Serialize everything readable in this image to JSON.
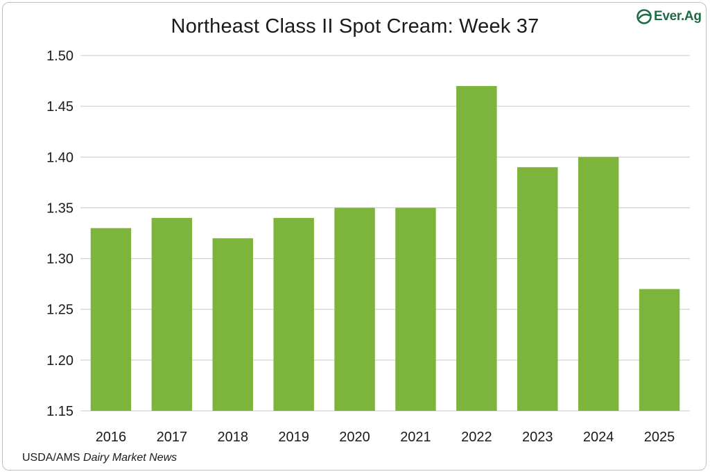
{
  "logo": {
    "text": "Ever.Ag",
    "icon": "ever-ag-leaf-icon",
    "color": "#1e6b45"
  },
  "footer": {
    "source_prefix": "USDA/AMS",
    "source_publication": "Dairy Market News"
  },
  "chart_data": {
    "type": "bar",
    "title": "Northeast Class II Spot Cream: Week 37",
    "xlabel": "",
    "ylabel": "",
    "categories": [
      "2016",
      "2017",
      "2018",
      "2019",
      "2020",
      "2021",
      "2022",
      "2023",
      "2024",
      "2025"
    ],
    "values": [
      1.33,
      1.34,
      1.32,
      1.34,
      1.35,
      1.35,
      1.47,
      1.39,
      1.4,
      1.27
    ],
    "ylim": [
      1.15,
      1.5
    ],
    "yticks": [
      "1.15",
      "1.20",
      "1.25",
      "1.30",
      "1.35",
      "1.40",
      "1.45",
      "1.50"
    ],
    "grid": true,
    "legend": "none",
    "bar_color": "#7cb43c"
  }
}
